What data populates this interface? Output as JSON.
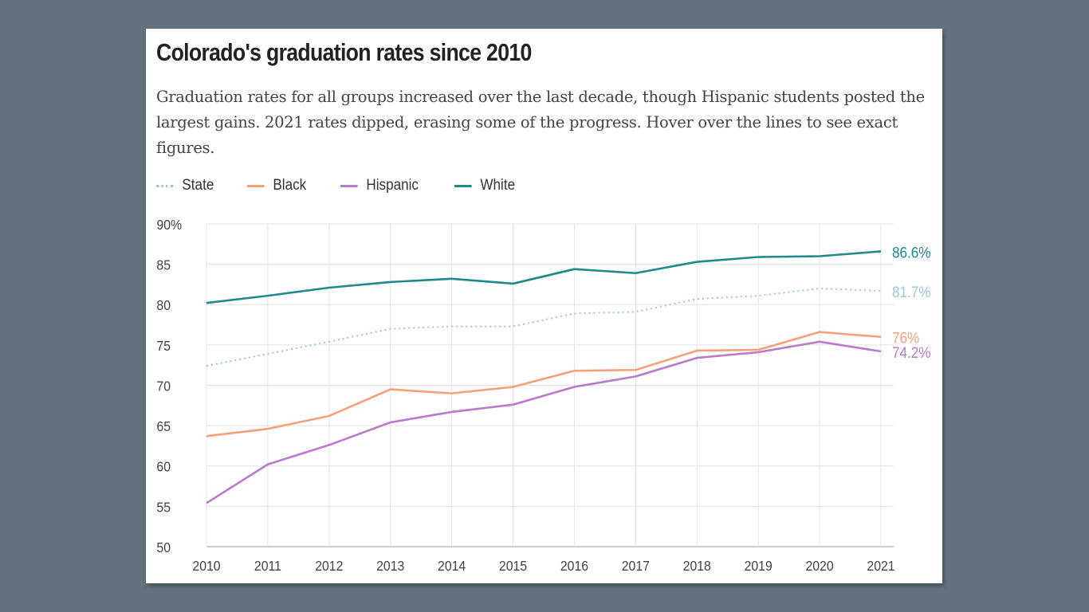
{
  "title": "Colorado's graduation rates since 2010",
  "subtitle": "Graduation rates for all groups increased over the last decade, though Hispanic students posted the largest gains. 2021 rates dipped, erasing some of the progress. Hover over the lines to see exact figures.",
  "chart_data": {
    "type": "line",
    "title": "Colorado's graduation rates since 2010",
    "x": [
      2010,
      2011,
      2012,
      2013,
      2014,
      2015,
      2016,
      2017,
      2018,
      2019,
      2020,
      2021
    ],
    "ylim": [
      50,
      90
    ],
    "yticks": [
      "90%",
      "85",
      "80",
      "75",
      "70",
      "65",
      "60",
      "55",
      "50"
    ],
    "grid": true,
    "legend_placement": "top-left",
    "series": [
      {
        "name": "State",
        "color": "#9cc7d9",
        "dashed": true,
        "end_label": "81.7%",
        "values": [
          72.4,
          73.9,
          75.4,
          77.0,
          77.3,
          77.3,
          78.9,
          79.1,
          80.7,
          81.1,
          82.0,
          81.7
        ]
      },
      {
        "name": "Black",
        "color": "#f6a07a",
        "dashed": false,
        "end_label": "76%",
        "values": [
          63.7,
          64.6,
          66.2,
          69.5,
          69.0,
          69.8,
          71.8,
          71.9,
          74.3,
          74.4,
          76.6,
          76.0
        ]
      },
      {
        "name": "Hispanic",
        "color": "#b97ac9",
        "dashed": false,
        "end_label": "74.2%",
        "values": [
          55.4,
          60.2,
          62.6,
          65.4,
          66.7,
          67.6,
          69.8,
          71.1,
          73.4,
          74.1,
          75.4,
          74.2
        ]
      },
      {
        "name": "White",
        "color": "#1f8a8a",
        "dashed": false,
        "end_label": "86.6%",
        "values": [
          80.2,
          81.1,
          82.1,
          82.8,
          83.2,
          82.6,
          84.4,
          83.9,
          85.3,
          85.9,
          86.0,
          86.6
        ]
      }
    ]
  }
}
